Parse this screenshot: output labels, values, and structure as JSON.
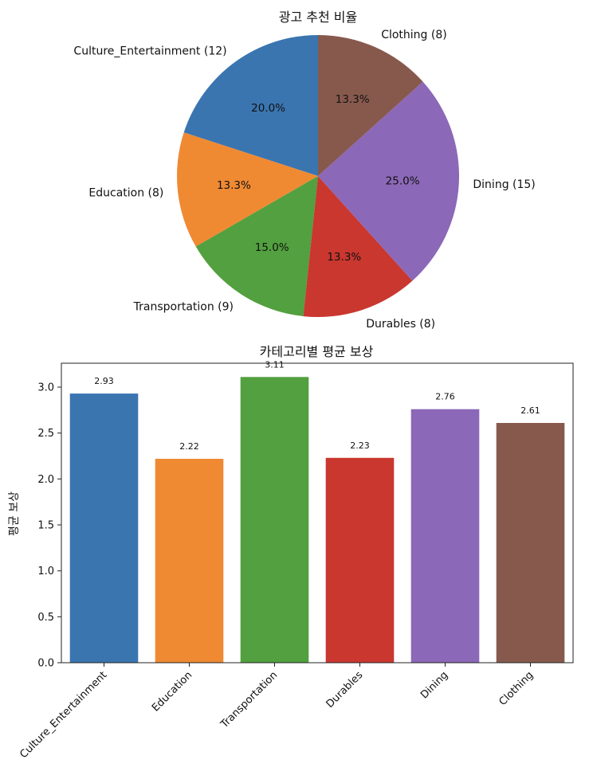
{
  "chart_data": [
    {
      "type": "pie",
      "title": "광고 추천 비율",
      "start_angle_deg": 90,
      "direction": "counterclockwise",
      "slices": [
        {
          "label": "Culture_Entertainment (12)",
          "count": 12,
          "percent": "20.0%",
          "color": "#3a75b0"
        },
        {
          "label": "Education (8)",
          "count": 8,
          "percent": "13.3%",
          "color": "#ef8a33"
        },
        {
          "label": "Transportation (9)",
          "count": 9,
          "percent": "15.0%",
          "color": "#52a03f"
        },
        {
          "label": "Durables (8)",
          "count": 8,
          "percent": "13.3%",
          "color": "#c9372f"
        },
        {
          "label": "Dining (15)",
          "count": 15,
          "percent": "25.0%",
          "color": "#8c68b8"
        },
        {
          "label": "Clothing (8)",
          "count": 8,
          "percent": "13.3%",
          "color": "#87594d"
        }
      ]
    },
    {
      "type": "bar",
      "title": "카테고리별 평균 보상",
      "xlabel": "",
      "ylabel": "평균 보상",
      "ylim": [
        0,
        3.26
      ],
      "yticks": [
        "0.0",
        "0.5",
        "1.0",
        "1.5",
        "2.0",
        "2.5",
        "3.0"
      ],
      "grid": false,
      "categories": [
        "Culture_Entertainment",
        "Education",
        "Transportation",
        "Durables",
        "Dining",
        "Clothing"
      ],
      "values": [
        2.93,
        2.22,
        3.11,
        2.23,
        2.76,
        2.61
      ],
      "value_labels": [
        "2.93",
        "2.22",
        "3.11",
        "2.23",
        "2.76",
        "2.61"
      ],
      "colors": [
        "#3a75b0",
        "#ef8a33",
        "#52a03f",
        "#c9372f",
        "#8c68b8",
        "#87594d"
      ]
    }
  ]
}
